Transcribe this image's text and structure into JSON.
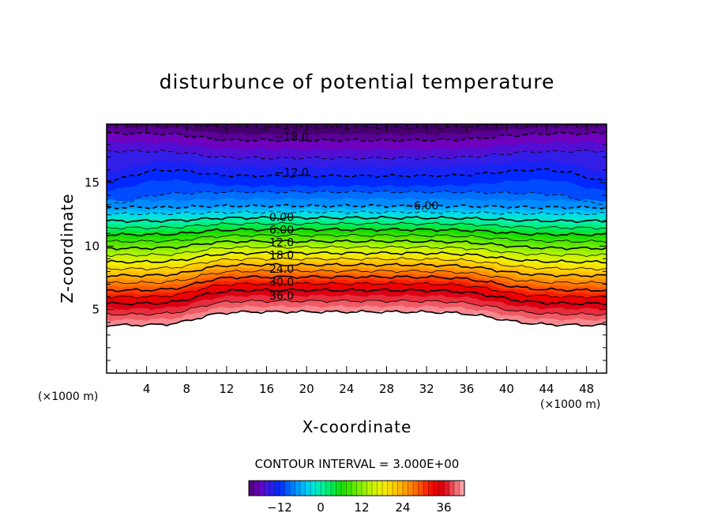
{
  "chart_data": {
    "type": "filled-contour",
    "title": "disturbunce of potential temperature",
    "xlabel": "X-coordinate",
    "ylabel": "Z-coordinate",
    "x_unit": "(×1000 m)",
    "z_unit": "(×1000 m)",
    "xlim": [
      0,
      50
    ],
    "ylim": [
      0,
      19.6
    ],
    "x_ticks": [
      "4",
      "8",
      "12",
      "16",
      "20",
      "24",
      "28",
      "32",
      "36",
      "40",
      "44",
      "48"
    ],
    "y_ticks": [
      "5",
      "10",
      "15"
    ],
    "contour_interval_text": "CONTOUR INTERVAL = 3.000E+00",
    "colorbar": {
      "min": -21,
      "max": 42,
      "ticks": [
        "−12",
        "0",
        "12",
        "24",
        "36"
      ],
      "tick_values": [
        -12,
        0,
        12,
        24,
        36
      ]
    },
    "contour_labels": [
      {
        "text": "−18.0",
        "x": 18.5,
        "z": 18.6
      },
      {
        "text": "−12.0",
        "x": 18.5,
        "z": 15.8
      },
      {
        "text": "−6.00",
        "x": 31.5,
        "z": 13.2
      },
      {
        "text": "0.00",
        "x": 17.5,
        "z": 12.3
      },
      {
        "text": "6.00",
        "x": 17.5,
        "z": 11.3
      },
      {
        "text": "12.0",
        "x": 17.5,
        "z": 10.3
      },
      {
        "text": "18.0",
        "x": 17.5,
        "z": 9.3
      },
      {
        "text": "24.0",
        "x": 17.5,
        "z": 8.2
      },
      {
        "text": "30.0",
        "x": 17.5,
        "z": 7.2
      },
      {
        "text": "36.0",
        "x": 17.5,
        "z": 6.1
      }
    ],
    "field_levels": [
      {
        "value": 42,
        "z": 4.3
      },
      {
        "value": 36,
        "z": 6.0
      },
      {
        "value": 24,
        "z": 8.1
      },
      {
        "value": 12,
        "z": 10.1
      },
      {
        "value": 0,
        "z": 12.1
      },
      {
        "value": -6,
        "z": 13.1
      },
      {
        "value": -9,
        "z": 14.2
      },
      {
        "value": -12,
        "z": 15.8
      },
      {
        "value": -18,
        "z": 18.6
      },
      {
        "value": -21,
        "z": 19.6
      }
    ],
    "topography_hint": "undisturbed region below z about 4.4-5.4 with a plateau between x=10 and x=38"
  }
}
